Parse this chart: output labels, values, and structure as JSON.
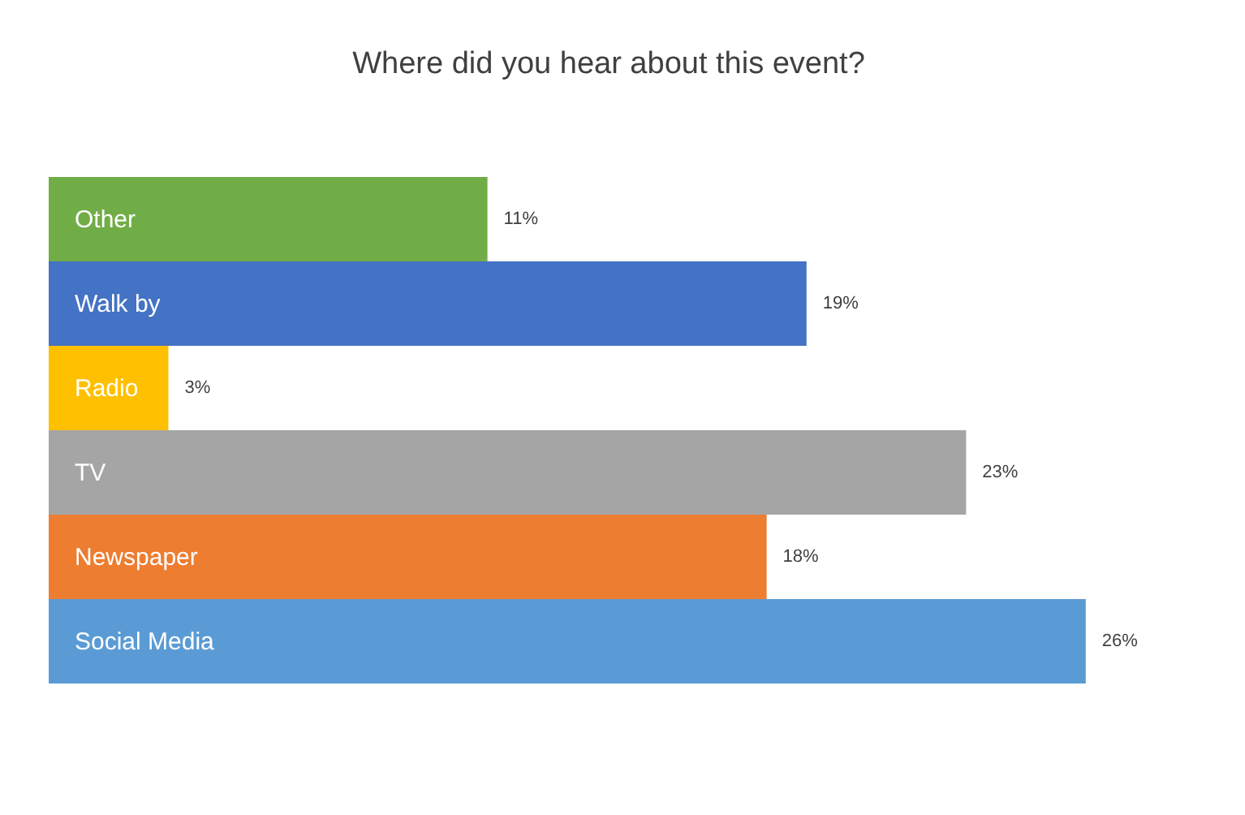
{
  "chart_data": {
    "type": "bar",
    "orientation": "horizontal",
    "title": "Where did you hear about this event?",
    "categories": [
      "Other",
      "Walk by",
      "Radio",
      "TV",
      "Newspaper",
      "Social Media"
    ],
    "values": [
      11,
      19,
      3,
      23,
      18,
      26
    ],
    "value_labels": [
      "11%",
      "19%",
      "3%",
      "23%",
      "18%",
      "26%"
    ],
    "colors": [
      "#70ad47",
      "#4472c4",
      "#ffc000",
      "#a5a5a5",
      "#ed7d31",
      "#5b9bd5"
    ]
  }
}
